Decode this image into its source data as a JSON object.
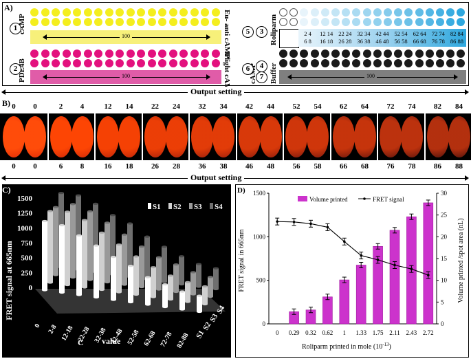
{
  "panelA": {
    "label": "A)",
    "rows": [
      {
        "num": "1",
        "side_label": "cAMP",
        "right_label": "Eu- anti cAMP",
        "dot_color": "#f4ee1e",
        "bar_color": "#f7f07a",
        "arrow_label": "100"
      },
      {
        "num": "2",
        "side_label": "PDE4B",
        "right_label": "Ulight cAMP",
        "dot_color": "#e3117e",
        "bar_color": "#e05ca8",
        "arrow_label": "100"
      }
    ],
    "right": {
      "num_rolipram": "3",
      "rolipram_label": "Roliparm",
      "num5": "5",
      "num4": "4",
      "num6": "6",
      "num7": "7",
      "camp_label": "cAMP",
      "buffer_label": "Buffer",
      "gradient_nums_top": [
        "2 4",
        "12 14",
        "22 24",
        "32 34",
        "42 44",
        "52 54",
        "62 64",
        "72 74",
        "82 84"
      ],
      "gradient_nums_bottom": [
        "6 8",
        "16 18",
        "26 28",
        "36 38",
        "46 48",
        "56 58",
        "66 68",
        "76 78",
        "86 88"
      ],
      "buffer_arrow_label": "100"
    }
  },
  "output_setting": "Output setting",
  "panelB": {
    "label": "B)",
    "top_numbers": [
      "0",
      "0",
      "2",
      "4",
      "12",
      "14",
      "22",
      "24",
      "32",
      "34",
      "42",
      "44",
      "52",
      "54",
      "62",
      "64",
      "72",
      "74",
      "82",
      "84"
    ],
    "bottom_numbers": [
      "0",
      "0",
      "6",
      "8",
      "16",
      "18",
      "26",
      "28",
      "36",
      "38",
      "46",
      "48",
      "56",
      "58",
      "66",
      "68",
      "76",
      "78",
      "86",
      "88"
    ]
  },
  "panelC": {
    "label": "C)",
    "ylabel": "FRET signal at 665nm",
    "xlabel": "value",
    "x_corner": "C",
    "legend": [
      "S1",
      "S2",
      "S3",
      "S4"
    ],
    "series_axis": [
      "S1",
      "S2",
      "S3",
      "S4"
    ]
  },
  "chart_data": [
    {
      "type": "bar3d",
      "title": "",
      "ylabel": "FRET signal at 665nm",
      "xlabel": "value",
      "ylim": [
        0,
        1500
      ],
      "yticks": [
        "0",
        "250",
        "500",
        "750",
        "1000",
        "1250",
        "1500"
      ],
      "categories": [
        "0",
        "2-8",
        "12-18",
        "22-28",
        "32-38",
        "42-48",
        "52-58",
        "62-68",
        "72-78",
        "82-88"
      ],
      "series": [
        {
          "name": "S1",
          "values": [
            1160,
            1130,
            1000,
            870,
            720,
            610,
            460,
            380,
            300,
            270
          ]
        },
        {
          "name": "S2",
          "values": [
            1200,
            1230,
            1130,
            960,
            800,
            640,
            500,
            400,
            330,
            300
          ]
        },
        {
          "name": "S3",
          "values": [
            1140,
            1230,
            1150,
            1000,
            840,
            680,
            540,
            460,
            370,
            330
          ]
        },
        {
          "name": "S4",
          "values": [
            1250,
            1250,
            1150,
            1000,
            900,
            720,
            590,
            470,
            380,
            350
          ]
        }
      ]
    },
    {
      "type": "bar+line",
      "title": "",
      "xlabel": "Roliparm printed in mole (10",
      "xlabel_sup": "-13",
      "xlabel_end": ")",
      "ylabel": "FRET signal in 665nm",
      "y2label": "Volume printed /spot area (nL)",
      "categories": [
        "0",
        "0.29",
        "0.32",
        "0.62",
        "1",
        "1.33",
        "1.75",
        "2.11",
        "2.43",
        "2.72"
      ],
      "ylim": [
        0,
        1500
      ],
      "yticks": [
        "0",
        "500",
        "1000",
        "1500"
      ],
      "y2lim": [
        0,
        30
      ],
      "y2ticks": [
        "0",
        "5",
        "10",
        "15",
        "20",
        "25",
        "30"
      ],
      "series": [
        {
          "name": "Volume printed",
          "type": "bar",
          "axis": "y2",
          "values": [
            0,
            2.8,
            3.2,
            6.2,
            10.1,
            13.5,
            17.8,
            21.5,
            24.6,
            27.8
          ]
        },
        {
          "name": "FRET signal",
          "type": "line",
          "axis": "y",
          "values": [
            1175,
            1170,
            1150,
            1110,
            945,
            785,
            735,
            675,
            630,
            560
          ]
        }
      ],
      "legend": [
        "Volume printed",
        "FRET signal"
      ],
      "label": "D)"
    }
  ]
}
